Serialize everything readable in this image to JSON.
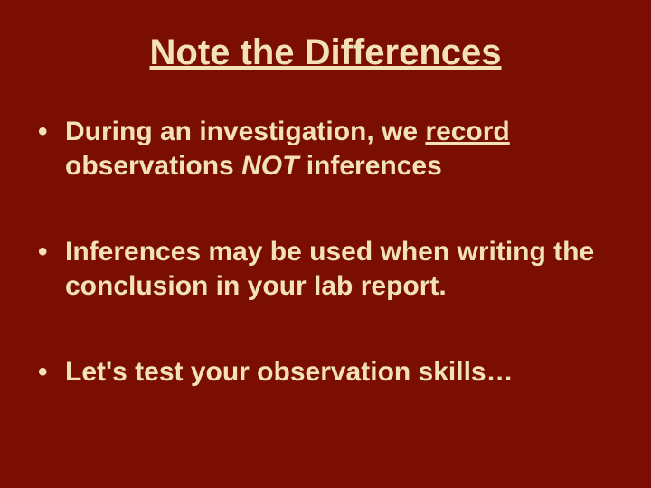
{
  "colors": {
    "background": "#7a0e04",
    "text": "#f3e2b8"
  },
  "typography": {
    "title_fontsize": 40,
    "bullet_fontsize": 30,
    "font_family": "Arial",
    "title_weight": "bold",
    "bullet_weight": "bold"
  },
  "title": "Note the Differences",
  "bullets": {
    "b1_part1": "During an investigation, we ",
    "b1_underlined": "record",
    "b1_part2": " observations ",
    "b1_italic": "NOT",
    "b1_part3": " inferences",
    "b2": "Inferences may be used when writing the conclusion in your lab report.",
    "b3": "Let's test your observation skills…"
  }
}
